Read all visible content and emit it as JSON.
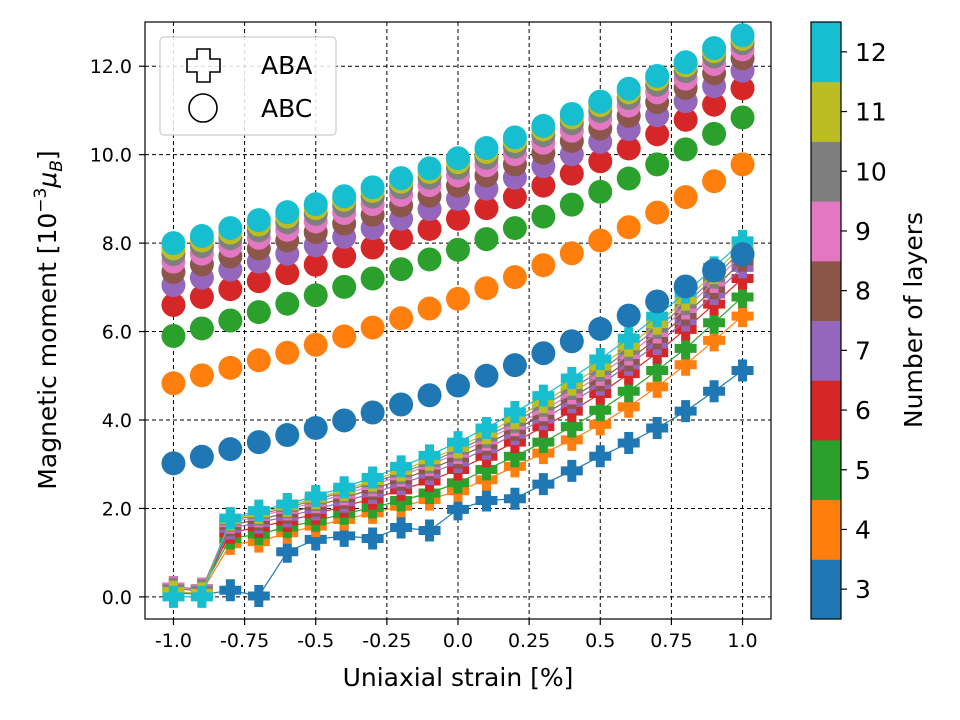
{
  "chart_data": {
    "type": "scatter",
    "xlabel": "Uniaxial strain [%]",
    "ylabel_parts": [
      "Magnetic moment [10",
      "−3",
      "μ",
      "B",
      "]"
    ],
    "xlim": [
      -1.1,
      1.1
    ],
    "ylim": [
      -0.5,
      13.0
    ],
    "x": [
      -1.0,
      -0.9,
      -0.8,
      -0.7,
      -0.6,
      -0.5,
      -0.4,
      -0.3,
      -0.2,
      -0.1,
      0.0,
      0.1,
      0.2,
      0.3,
      0.4,
      0.5,
      0.6,
      0.7,
      0.8,
      0.9,
      1.0
    ],
    "xticks": [
      -1.0,
      -0.75,
      -0.5,
      -0.25,
      0.0,
      0.25,
      0.5,
      0.75,
      1.0
    ],
    "xtick_labels": [
      "-1.0",
      "-0.75",
      "-0.5",
      "-0.25",
      "0.0",
      "0.25",
      "0.5",
      "0.75",
      "1.0"
    ],
    "yticks": [
      0,
      2,
      4,
      6,
      8,
      10,
      12
    ],
    "ytick_labels": [
      "0.0",
      "2.0",
      "4.0",
      "6.0",
      "8.0",
      "10.0",
      "12.0"
    ],
    "grid": true,
    "legend": {
      "placement": "top-left",
      "entries": [
        {
          "label": "ABA",
          "marker": "plus"
        },
        {
          "label": "ABC",
          "marker": "circle"
        }
      ]
    },
    "colorbar": {
      "label": "Number of layers",
      "ticks": [
        "3",
        "4",
        "5",
        "6",
        "7",
        "8",
        "9",
        "10",
        "11",
        "12"
      ],
      "colors": [
        "#1f77b4",
        "#ff7f0e",
        "#2ca02c",
        "#d62728",
        "#9467bd",
        "#8c564b",
        "#e377c2",
        "#7f7f7f",
        "#bcbd22",
        "#17becf"
      ]
    },
    "abc_series": [
      {
        "name": "ABC 3 layers",
        "color": "#1f77b4",
        "values": [
          3.02,
          3.17,
          3.34,
          3.5,
          3.66,
          3.82,
          3.99,
          4.17,
          4.35,
          4.56,
          4.78,
          5.0,
          5.24,
          5.51,
          5.78,
          6.06,
          6.36,
          6.68,
          7.02,
          7.38,
          7.75
        ]
      },
      {
        "name": "ABC 4 layers",
        "color": "#ff7f0e",
        "values": [
          4.83,
          5.01,
          5.18,
          5.35,
          5.52,
          5.7,
          5.89,
          6.09,
          6.3,
          6.52,
          6.74,
          6.98,
          7.23,
          7.5,
          7.77,
          8.06,
          8.36,
          8.69,
          9.04,
          9.4,
          9.78
        ]
      },
      {
        "name": "ABC 5 layers",
        "color": "#2ca02c",
        "values": [
          5.9,
          6.07,
          6.25,
          6.44,
          6.63,
          6.82,
          7.01,
          7.2,
          7.41,
          7.63,
          7.85,
          8.09,
          8.34,
          8.6,
          8.87,
          9.16,
          9.46,
          9.78,
          10.12,
          10.47,
          10.84
        ]
      },
      {
        "name": "ABC 6 layers",
        "color": "#d62728",
        "values": [
          6.6,
          6.78,
          6.96,
          7.14,
          7.32,
          7.51,
          7.7,
          7.9,
          8.11,
          8.32,
          8.55,
          8.79,
          9.04,
          9.3,
          9.57,
          9.85,
          10.14,
          10.46,
          10.79,
          11.13,
          11.5
        ]
      },
      {
        "name": "ABC 7 layers",
        "color": "#9467bd",
        "values": [
          7.05,
          7.22,
          7.4,
          7.58,
          7.76,
          7.95,
          8.14,
          8.34,
          8.55,
          8.77,
          9.0,
          9.23,
          9.48,
          9.74,
          10.01,
          10.29,
          10.58,
          10.89,
          11.21,
          11.55,
          11.9
        ]
      },
      {
        "name": "ABC 8 layers",
        "color": "#8c564b",
        "values": [
          7.35,
          7.52,
          7.7,
          7.88,
          8.06,
          8.25,
          8.44,
          8.64,
          8.85,
          9.07,
          9.3,
          9.53,
          9.78,
          10.04,
          10.31,
          10.59,
          10.88,
          11.19,
          11.51,
          11.84,
          12.18
        ]
      },
      {
        "name": "ABC 9 layers",
        "color": "#e377c2",
        "values": [
          7.58,
          7.76,
          7.94,
          8.12,
          8.3,
          8.49,
          8.68,
          8.88,
          9.09,
          9.31,
          9.53,
          9.76,
          10.01,
          10.27,
          10.54,
          10.82,
          11.11,
          11.41,
          11.72,
          12.05,
          12.38
        ]
      },
      {
        "name": "ABC 10 layers",
        "color": "#7f7f7f",
        "values": [
          7.75,
          7.93,
          8.11,
          8.29,
          8.47,
          8.66,
          8.85,
          9.05,
          9.26,
          9.48,
          9.7,
          9.93,
          10.18,
          10.44,
          10.71,
          10.99,
          11.28,
          11.58,
          11.89,
          12.22,
          12.52
        ]
      },
      {
        "name": "ABC 11 layers",
        "color": "#bcbd22",
        "values": [
          7.88,
          8.06,
          8.24,
          8.42,
          8.6,
          8.79,
          8.98,
          9.18,
          9.39,
          9.61,
          9.83,
          10.06,
          10.31,
          10.57,
          10.84,
          11.12,
          11.41,
          11.71,
          12.02,
          12.34,
          12.62
        ]
      },
      {
        "name": "ABC 12 layers",
        "color": "#17becf",
        "values": [
          8.0,
          8.16,
          8.34,
          8.52,
          8.7,
          8.88,
          9.06,
          9.26,
          9.47,
          9.69,
          9.92,
          10.15,
          10.39,
          10.65,
          10.92,
          11.2,
          11.49,
          11.78,
          12.09,
          12.41,
          12.7
        ]
      }
    ],
    "aba_series": [
      {
        "name": "ABA 3 layers",
        "color": "#1f77b4",
        "values": [
          0.1,
          0.05,
          0.15,
          0.02,
          1.02,
          1.3,
          1.38,
          1.32,
          1.57,
          1.5,
          1.98,
          2.18,
          2.22,
          2.55,
          2.85,
          3.18,
          3.48,
          3.82,
          4.2,
          4.65,
          5.12
        ]
      },
      {
        "name": "ABA 4 layers",
        "color": "#ff7f0e",
        "values": [
          0.2,
          0.12,
          1.2,
          1.25,
          1.45,
          1.6,
          1.75,
          1.9,
          2.05,
          2.2,
          2.4,
          2.65,
          2.95,
          3.25,
          3.55,
          3.9,
          4.3,
          4.75,
          5.25,
          5.8,
          6.35
        ]
      },
      {
        "name": "ABA 5 layers",
        "color": "#2ca02c",
        "values": [
          0.22,
          0.18,
          1.32,
          1.42,
          1.58,
          1.72,
          1.88,
          2.02,
          2.18,
          2.35,
          2.58,
          2.88,
          3.18,
          3.5,
          3.85,
          4.22,
          4.65,
          5.12,
          5.62,
          6.2,
          6.78
        ]
      },
      {
        "name": "ABA 6 layers",
        "color": "#d62728",
        "values": [
          0.22,
          0.18,
          1.45,
          1.58,
          1.72,
          1.88,
          2.05,
          2.22,
          2.42,
          2.62,
          2.88,
          3.18,
          3.5,
          3.85,
          4.2,
          4.6,
          5.05,
          5.52,
          6.05,
          6.62,
          7.2
        ]
      },
      {
        "name": "ABA 7 layers",
        "color": "#9467bd",
        "values": [
          0.22,
          0.18,
          1.55,
          1.68,
          1.82,
          1.98,
          2.15,
          2.35,
          2.55,
          2.78,
          3.05,
          3.35,
          3.68,
          4.02,
          4.4,
          4.8,
          5.25,
          5.72,
          6.25,
          6.85,
          7.45
        ]
      },
      {
        "name": "ABA 8 layers",
        "color": "#8c564b",
        "values": [
          0.22,
          0.18,
          1.62,
          1.75,
          1.9,
          2.06,
          2.24,
          2.44,
          2.65,
          2.88,
          3.15,
          3.45,
          3.78,
          4.12,
          4.5,
          4.9,
          5.35,
          5.85,
          6.38,
          6.98,
          7.6
        ]
      },
      {
        "name": "ABA 9 layers",
        "color": "#e377c2",
        "values": [
          0.22,
          0.18,
          1.68,
          1.82,
          1.98,
          2.14,
          2.32,
          2.52,
          2.74,
          2.98,
          3.25,
          3.55,
          3.88,
          4.22,
          4.6,
          5.02,
          5.48,
          5.98,
          6.52,
          7.12,
          7.75
        ]
      },
      {
        "name": "ABA 10 layers",
        "color": "#7f7f7f",
        "values": [
          0.18,
          0.15,
          1.72,
          1.86,
          2.02,
          2.19,
          2.38,
          2.58,
          2.8,
          3.04,
          3.32,
          3.62,
          3.96,
          4.32,
          4.7,
          5.12,
          5.58,
          6.08,
          6.62,
          7.22,
          7.85
        ]
      },
      {
        "name": "ABA 11 layers",
        "color": "#bcbd22",
        "values": [
          0.12,
          0.08,
          1.75,
          1.9,
          2.06,
          2.23,
          2.42,
          2.63,
          2.86,
          3.1,
          3.38,
          3.7,
          4.04,
          4.4,
          4.8,
          5.22,
          5.68,
          6.18,
          6.72,
          7.32,
          7.95
        ]
      },
      {
        "name": "ABA 12 layers",
        "color": "#17becf",
        "values": [
          0.0,
          0.0,
          1.78,
          1.95,
          2.1,
          2.28,
          2.48,
          2.7,
          2.95,
          3.2,
          3.5,
          3.82,
          4.18,
          4.55,
          4.95,
          5.38,
          5.85,
          6.35,
          6.88,
          7.45,
          8.05
        ]
      }
    ]
  }
}
